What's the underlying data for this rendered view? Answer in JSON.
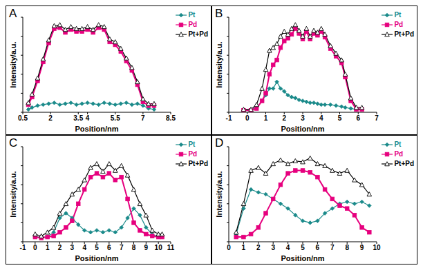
{
  "chart_data": [
    {
      "type": "line",
      "title": "A",
      "x_label": "Position/nm",
      "y_label": "Intensity/a.u.",
      "tick_labels": "x",
      "legend": "upper right",
      "xlim": [
        0.5,
        8.5
      ],
      "xticks": [
        0.5,
        2,
        3.5,
        4,
        5.5,
        7,
        8.5
      ],
      "ylim": [
        0,
        100
      ],
      "yticks": [
        0,
        20,
        40,
        60,
        80,
        100
      ],
      "x": [
        0.8,
        1.0,
        1.3,
        1.6,
        1.9,
        2.2,
        2.5,
        2.8,
        3.1,
        3.4,
        3.7,
        4.0,
        4.3,
        4.6,
        4.9,
        5.2,
        5.5,
        5.8,
        6.1,
        6.4,
        6.7,
        7.0,
        7.3,
        7.6
      ],
      "series": [
        {
          "name": "Pt",
          "color": "#1a8a8a",
          "marker": "diamond",
          "values": [
            3,
            5,
            7,
            8,
            9,
            10,
            8,
            9,
            10,
            8,
            9,
            10,
            9,
            8,
            10,
            9,
            8,
            9,
            10,
            8,
            9,
            7,
            4,
            3
          ]
        },
        {
          "name": "Pd",
          "color": "#e6007e",
          "marker": "square",
          "values": [
            8,
            16,
            33,
            53,
            73,
            88,
            89,
            84,
            87,
            85,
            85,
            87,
            84,
            89,
            87,
            74,
            71,
            64,
            54,
            44,
            29,
            11,
            7,
            7
          ]
        },
        {
          "name": "Pt+Pd",
          "color": "#000000",
          "marker": "triangle",
          "values": [
            10,
            19,
            36,
            56,
            76,
            91,
            92,
            87,
            90,
            88,
            88,
            90,
            87,
            92,
            90,
            77,
            74,
            67,
            57,
            47,
            32,
            14,
            9,
            9
          ]
        }
      ]
    },
    {
      "type": "line",
      "title": "B",
      "x_label": "Position/nm",
      "y_label": "Intensity/a.u.",
      "tick_labels": "x",
      "legend": "upper right",
      "xlim": [
        -1,
        7
      ],
      "xticks": [
        -1,
        0,
        1,
        2,
        3,
        4,
        5,
        6,
        7
      ],
      "ylim": [
        0,
        100
      ],
      "yticks": [
        0,
        20,
        40,
        60,
        80,
        100
      ],
      "x": [
        -0.2,
        0.2,
        0.5,
        0.8,
        1.0,
        1.2,
        1.4,
        1.6,
        1.8,
        2.0,
        2.2,
        2.4,
        2.6,
        2.8,
        3.0,
        3.2,
        3.4,
        3.6,
        3.8,
        4.0,
        4.2,
        4.5,
        4.8,
        5.1,
        5.3,
        5.6,
        5.9,
        6.2
      ],
      "series": [
        {
          "name": "Pt",
          "color": "#1a8a8a",
          "marker": "diamond",
          "values": [
            2,
            3,
            5,
            12,
            18,
            25,
            25,
            32,
            25,
            22,
            18,
            16,
            15,
            13,
            12,
            11,
            10,
            10,
            9,
            8,
            8,
            8,
            7,
            6,
            5,
            4,
            3,
            3
          ]
        },
        {
          "name": "Pd",
          "color": "#e6007e",
          "marker": "square",
          "values": [
            2,
            2,
            4,
            12,
            20,
            40,
            50,
            55,
            68,
            75,
            78,
            82,
            88,
            83,
            77,
            85,
            77,
            83,
            81,
            85,
            79,
            67,
            59,
            52,
            37,
            12,
            3,
            3
          ]
        },
        {
          "name": "Pt+Pd",
          "color": "#000000",
          "marker": "triangle",
          "values": [
            3,
            3,
            8,
            25,
            45,
            65,
            68,
            72,
            80,
            85,
            82,
            88,
            92,
            86,
            80,
            88,
            80,
            86,
            84,
            88,
            82,
            70,
            62,
            55,
            40,
            15,
            5,
            5
          ]
        }
      ]
    },
    {
      "type": "line",
      "title": "C",
      "x_label": "Position/nm",
      "y_label": "Intensity/a.u.",
      "tick_labels": "x",
      "legend": "upper right",
      "xlim": [
        -1,
        11
      ],
      "xticks": [
        -1,
        0,
        1,
        2,
        3,
        4,
        5,
        6,
        7,
        8,
        9,
        10,
        11
      ],
      "ylim": [
        0,
        100
      ],
      "yticks": [
        0,
        20,
        40,
        60,
        80,
        100
      ],
      "x": [
        0,
        0.5,
        1,
        1.5,
        2,
        2.5,
        3,
        3.5,
        4,
        4.5,
        5,
        5.5,
        6,
        6.5,
        7,
        7.5,
        8,
        8.5,
        9,
        9.5,
        10,
        10.3
      ],
      "series": [
        {
          "name": "Pt",
          "color": "#1a8a8a",
          "marker": "diamond",
          "values": [
            5,
            5,
            5,
            10,
            25,
            30,
            25,
            18,
            12,
            10,
            12,
            10,
            12,
            10,
            15,
            25,
            35,
            28,
            15,
            8,
            5,
            5
          ]
        },
        {
          "name": "Pd",
          "color": "#e6007e",
          "marker": "square",
          "values": [
            5,
            4,
            5,
            6,
            10,
            15,
            22,
            40,
            55,
            68,
            72,
            68,
            72,
            65,
            68,
            45,
            20,
            12,
            8,
            6,
            5,
            5
          ]
        },
        {
          "name": "Pt+Pd",
          "color": "#000000",
          "marker": "triangle",
          "values": [
            8,
            6,
            10,
            15,
            30,
            40,
            50,
            55,
            65,
            78,
            82,
            74,
            82,
            75,
            80,
            70,
            55,
            40,
            28,
            12,
            8,
            8
          ]
        }
      ]
    },
    {
      "type": "line",
      "title": "D",
      "x_label": "Position/nm",
      "y_label": "Intensity/a.u.",
      "tick_labels": "x",
      "legend": "upper right",
      "xlim": [
        0,
        10
      ],
      "xticks": [
        0,
        1,
        2,
        3,
        4,
        5,
        6,
        7,
        8,
        9,
        10
      ],
      "ylim": [
        0,
        100
      ],
      "yticks": [
        0,
        20,
        40,
        60,
        80,
        100
      ],
      "x": [
        0.5,
        1,
        1.5,
        2,
        2.5,
        3,
        3.5,
        4,
        4.5,
        5,
        5.5,
        6,
        6.5,
        7,
        7.5,
        8,
        8.5,
        9,
        9.5
      ],
      "series": [
        {
          "name": "Pt",
          "color": "#1a8a8a",
          "marker": "diamond",
          "values": [
            8,
            35,
            55,
            52,
            50,
            45,
            40,
            35,
            28,
            22,
            20,
            22,
            30,
            35,
            40,
            42,
            40,
            42,
            38
          ]
        },
        {
          "name": "Pd",
          "color": "#e6007e",
          "marker": "square",
          "values": [
            5,
            5,
            8,
            15,
            30,
            45,
            60,
            72,
            75,
            75,
            73,
            68,
            55,
            45,
            38,
            35,
            28,
            15,
            10
          ]
        },
        {
          "name": "Pt+Pd",
          "color": "#000000",
          "marker": "triangle",
          "values": [
            10,
            40,
            75,
            78,
            72,
            82,
            86,
            82,
            85,
            84,
            88,
            82,
            80,
            75,
            72,
            75,
            65,
            60,
            50
          ]
        }
      ]
    }
  ]
}
